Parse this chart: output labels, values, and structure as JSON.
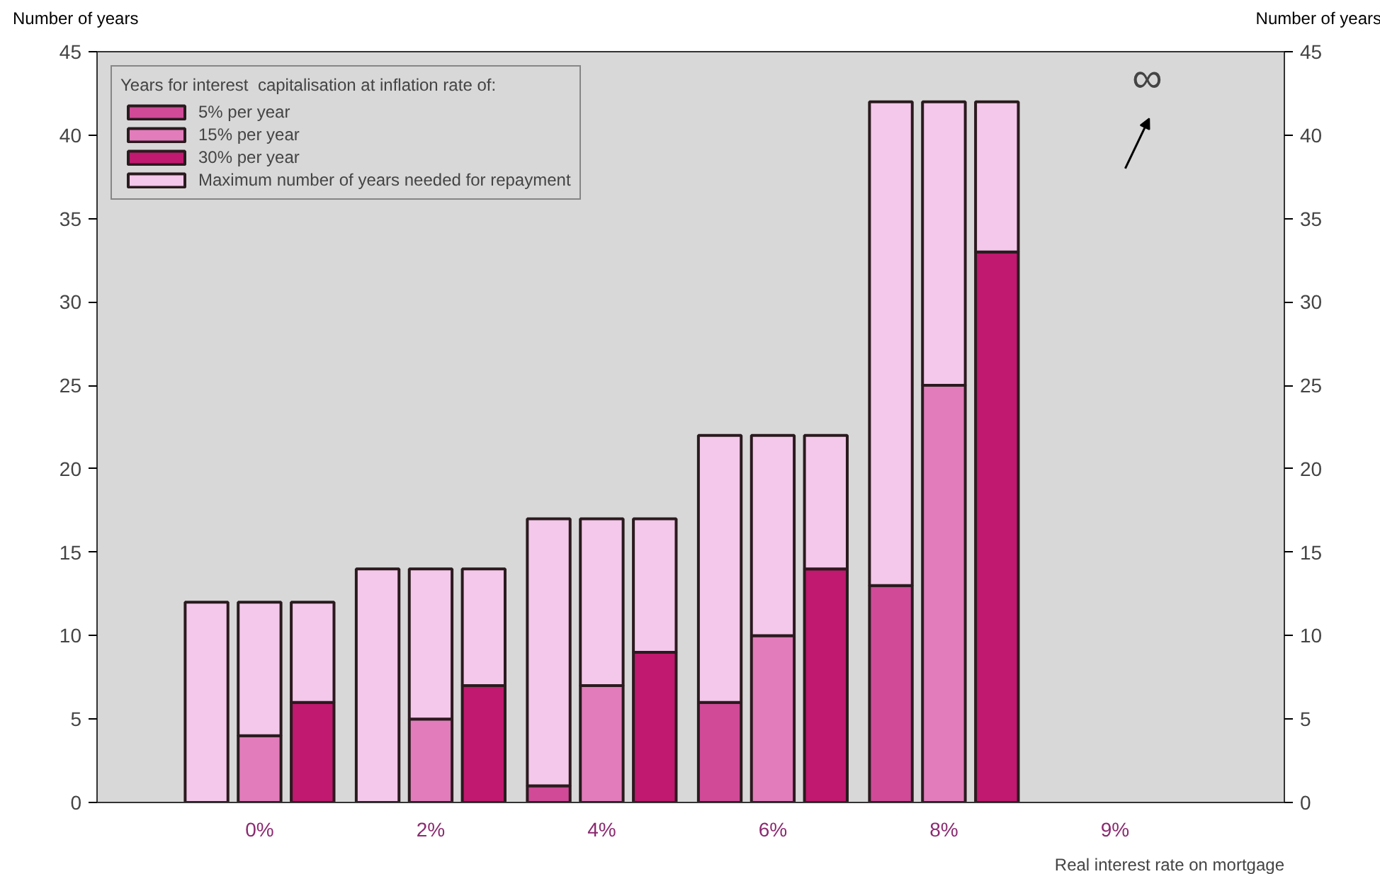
{
  "chart_data": {
    "type": "bar",
    "stacked": true,
    "categories": [
      null,
      "0%",
      null,
      null,
      "2%",
      null,
      null,
      "4%",
      null,
      null,
      "6%",
      null,
      null,
      "8%",
      null,
      null,
      "9%",
      null
    ],
    "series": [
      {
        "name": "5% per year",
        "color": "#d04a98",
        "values": [
          0,
          null,
          null,
          0,
          null,
          null,
          1,
          null,
          null,
          6,
          null,
          null,
          13,
          null,
          null,
          null,
          null,
          null
        ]
      },
      {
        "name": "15% per year",
        "color": "#e27cbb",
        "values": [
          null,
          4,
          null,
          null,
          5,
          null,
          null,
          7,
          null,
          null,
          10,
          null,
          null,
          25,
          null,
          null,
          null,
          null
        ]
      },
      {
        "name": "30% per year",
        "color": "#c0196f",
        "values": [
          null,
          null,
          6,
          null,
          null,
          7,
          null,
          null,
          9,
          null,
          null,
          14,
          null,
          null,
          33,
          null,
          null,
          null
        ]
      },
      {
        "name": "Maximum number of years needed for repayment",
        "color": "#f4c8ea",
        "values": [
          12,
          8,
          6,
          14,
          9,
          7,
          16,
          10,
          8,
          16,
          12,
          8,
          29,
          17,
          9,
          null,
          null,
          null
        ]
      }
    ],
    "legend_title": "Years for interest  capitalisation at inflation rate of:",
    "legend": "top left",
    "ylabel": "Number of years",
    "y2label": "Number of years",
    "xlabel": "Real interest rate on mortgage",
    "ylim": [
      0,
      45
    ],
    "yticks": [
      0,
      5,
      10,
      15,
      20,
      25,
      30,
      35,
      40,
      45
    ],
    "y2lim": [
      0,
      45
    ],
    "y2ticks": [
      0,
      5,
      10,
      15,
      20,
      25,
      30,
      35,
      40,
      45
    ],
    "annotations": [
      "∞"
    ],
    "grid": false
  }
}
